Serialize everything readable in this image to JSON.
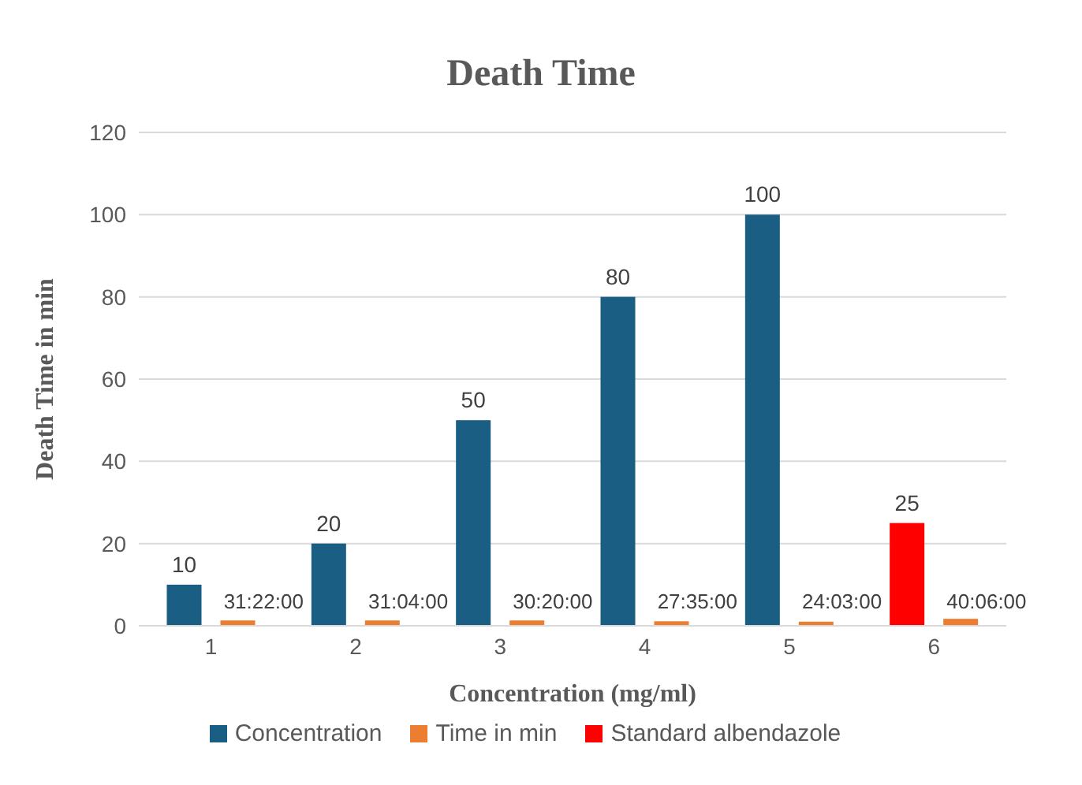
{
  "chart_data": {
    "type": "bar",
    "title": "Death Time",
    "xlabel": "Concentration (mg/ml)",
    "ylabel": "Death Time in min",
    "categories": [
      "1",
      "2",
      "3",
      "4",
      "5",
      "6"
    ],
    "series": [
      {
        "name": "Concentration",
        "color": "#1b5e84",
        "values": [
          10,
          20,
          50,
          80,
          100,
          null
        ],
        "value_labels": [
          "10",
          "20",
          "50",
          "80",
          "100",
          null
        ]
      },
      {
        "name": "Time in min",
        "color": "#ed7d31",
        "values": [
          1.3,
          1.3,
          1.3,
          1.1,
          1.0,
          1.7
        ]
      },
      {
        "name": "Standard albendazole",
        "color": "#ff0000",
        "values": [
          null,
          null,
          null,
          null,
          null,
          25
        ],
        "value_labels": [
          null,
          null,
          null,
          null,
          null,
          "25"
        ]
      }
    ],
    "ylim": [
      0,
      120
    ],
    "yticks": [
      0,
      20,
      40,
      60,
      80,
      100,
      120
    ],
    "grid": "y",
    "legend": "bottom",
    "annotations": [
      "31:22:00",
      "31:04:00",
      "30:20:00",
      "27:35:00",
      "24:03:00",
      "40:06:00"
    ]
  }
}
